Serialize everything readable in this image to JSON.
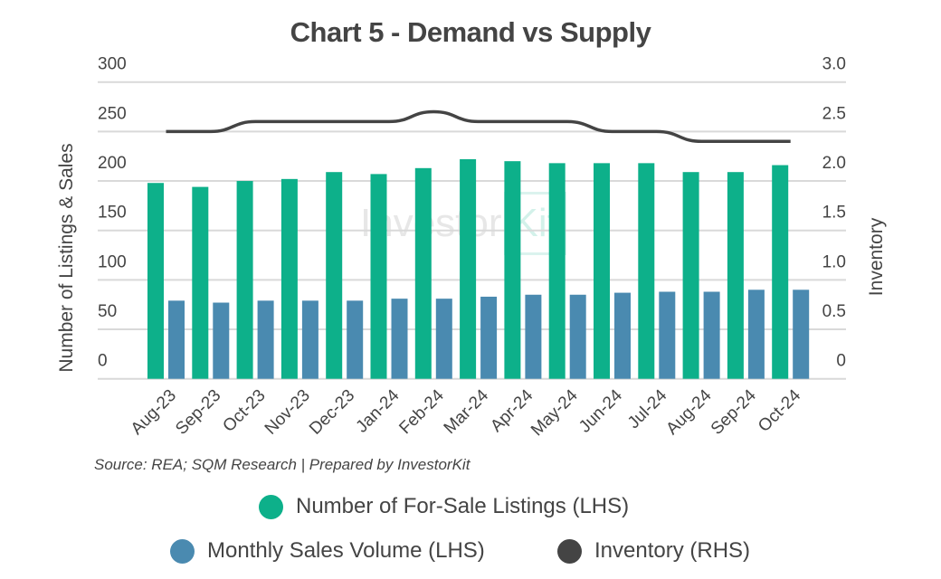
{
  "chart_data": {
    "type": "bar",
    "title": "Chart 5 - Demand vs Supply",
    "categories": [
      "Aug-23",
      "Sep-23",
      "Oct-23",
      "Nov-23",
      "Dec-23",
      "Jan-24",
      "Feb-24",
      "Mar-24",
      "Apr-24",
      "May-24",
      "Jun-24",
      "Jul-24",
      "Aug-24",
      "Sep-24",
      "Oct-24"
    ],
    "series": [
      {
        "name": "Number of For-Sale Listings (LHS)",
        "type": "bar",
        "axis": "left",
        "color": "#0db08a",
        "values": [
          198,
          194,
          200,
          202,
          209,
          207,
          213,
          222,
          220,
          218,
          218,
          218,
          209,
          209,
          216
        ]
      },
      {
        "name": "Monthly Sales Volume (LHS)",
        "type": "bar",
        "axis": "left",
        "color": "#4a8ab0",
        "values": [
          79,
          77,
          79,
          79,
          79,
          81,
          81,
          83,
          85,
          85,
          87,
          88,
          88,
          90,
          90
        ]
      },
      {
        "name": "Inventory (RHS)",
        "type": "line",
        "axis": "right",
        "color": "#444444",
        "values": [
          2.5,
          2.5,
          2.6,
          2.6,
          2.6,
          2.6,
          2.7,
          2.6,
          2.6,
          2.6,
          2.5,
          2.5,
          2.4,
          2.4,
          2.4
        ]
      }
    ],
    "ylabel": "Number of Listings & Sales",
    "ylim": [
      0,
      300
    ],
    "yticks": [
      "0",
      "50",
      "100",
      "150",
      "200",
      "250",
      "300"
    ],
    "y2label": "Inventory",
    "y2lim": [
      0,
      3.0
    ],
    "y2ticks": [
      "0",
      "0.5",
      "1.0",
      "1.5",
      "2.0",
      "2.5",
      "3.0"
    ],
    "grid": true,
    "legend_position": "bottom"
  },
  "source": "Source: REA; SQM Research | Prepared by InvestorKit",
  "watermark": {
    "text1": "Investor",
    "text2": "Kit"
  }
}
